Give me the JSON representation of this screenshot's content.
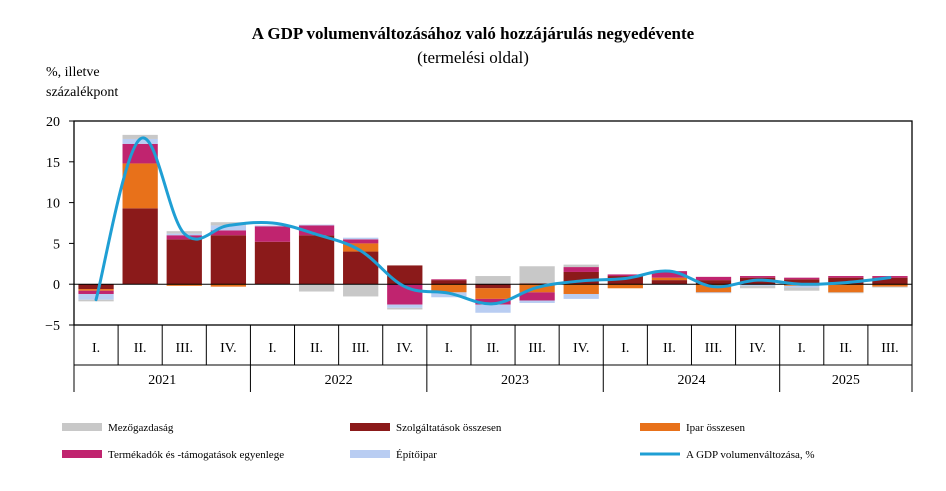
{
  "chart_data": {
    "type": "bar",
    "title": "A GDP volumenváltozásához való hozzájárulás negyedévente",
    "subtitle": "(termelési oldal)",
    "ylabel": [
      "%, illetve",
      "százalékpont"
    ],
    "ylim": [
      -5,
      20
    ],
    "yticks": [
      "20",
      "15",
      "10",
      "5",
      "0",
      "−5"
    ],
    "ytick_values": [
      20,
      15,
      10,
      5,
      0,
      -5
    ],
    "grid": false,
    "legend_position": "bottom",
    "categories": [
      "I.",
      "II.",
      "III.",
      "IV.",
      "I.",
      "II.",
      "III.",
      "IV.",
      "I.",
      "II.",
      "III.",
      "IV.",
      "I.",
      "II.",
      "III.",
      "IV.",
      "I.",
      "II.",
      "III."
    ],
    "years": [
      {
        "label": "2021",
        "count": 4
      },
      {
        "label": "2022",
        "count": 4
      },
      {
        "label": "2023",
        "count": 4
      },
      {
        "label": "2024",
        "count": 4
      },
      {
        "label": "2025",
        "count": 3
      }
    ],
    "series": [
      {
        "name": "Szolgáltatások összesen",
        "color": "#8b1a1a",
        "kind": "bar",
        "values": [
          -0.6,
          9.3,
          5.5,
          6.0,
          5.2,
          6.0,
          4.0,
          2.3,
          0.5,
          -0.5,
          0.1,
          1.5,
          1.0,
          0.5,
          0.5,
          0.8,
          0.6,
          0.8,
          0.8
        ]
      },
      {
        "name": "Ipar összesen",
        "color": "#e8711a",
        "kind": "bar",
        "values": [
          -0.2,
          5.5,
          -0.2,
          -0.3,
          0.0,
          0.0,
          1.0,
          0.0,
          -1.0,
          -1.3,
          -1.0,
          -1.2,
          -0.5,
          0.3,
          -1.0,
          0.0,
          -0.2,
          -1.0,
          -0.3
        ]
      },
      {
        "name": "Termékadók és -támogatások egyenlege",
        "color": "#c0246f",
        "kind": "bar",
        "values": [
          -0.4,
          2.4,
          0.5,
          0.6,
          1.9,
          1.2,
          0.5,
          -2.5,
          0.1,
          -0.7,
          -1.0,
          0.6,
          0.2,
          0.8,
          0.4,
          0.2,
          0.2,
          0.2,
          0.2
        ]
      },
      {
        "name": "Építőipar",
        "color": "#b9cdf2",
        "kind": "bar",
        "values": [
          -0.7,
          0.6,
          0.2,
          0.6,
          0.1,
          0.1,
          0.2,
          -0.4,
          -0.6,
          -1.0,
          -0.3,
          -0.6,
          0.0,
          0.0,
          -0.1,
          -0.2,
          -0.2,
          0.0,
          0.0
        ]
      },
      {
        "name": "Mezőgazdaság",
        "color": "#c8c8c8",
        "kind": "bar",
        "values": [
          -0.2,
          0.5,
          0.3,
          0.4,
          0.0,
          -0.9,
          -1.5,
          -0.2,
          0.0,
          1.0,
          2.1,
          0.3,
          0.0,
          0.0,
          0.0,
          -0.3,
          -0.4,
          -0.1,
          -0.1
        ]
      },
      {
        "name": "A GDP volumenváltozása, %",
        "color": "#1f9fd4",
        "kind": "line",
        "values": [
          -1.9,
          17.8,
          6.2,
          7.2,
          7.5,
          6.1,
          4.1,
          -0.3,
          -1.1,
          -2.4,
          -0.4,
          0.4,
          0.7,
          1.6,
          -0.3,
          0.5,
          0.0,
          0.2,
          0.8
        ]
      }
    ],
    "legend": [
      [
        "Mezőgazdaság",
        "Szolgáltatások összesen",
        "Ipar összesen"
      ],
      [
        "Termékadók és -támogatások egyenlege",
        "Építőipar",
        "A GDP volumenváltozása, %"
      ]
    ]
  }
}
